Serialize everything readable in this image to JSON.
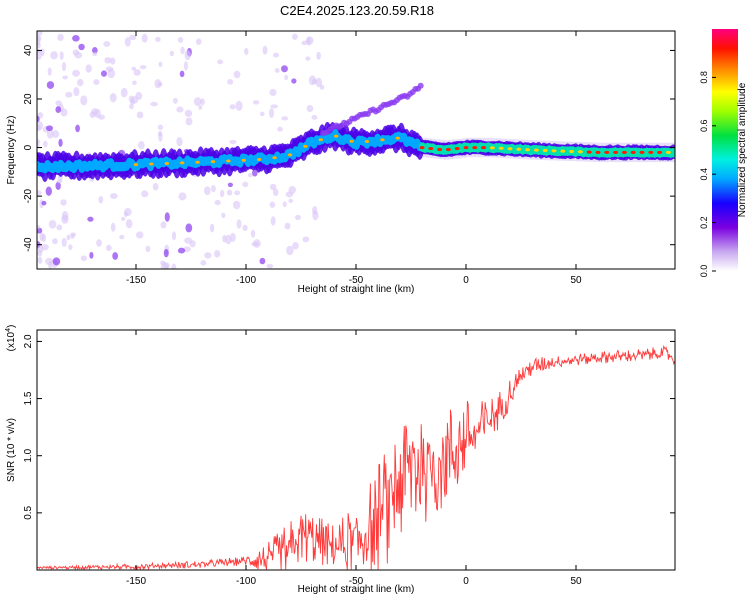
{
  "figure": {
    "title": "C2E4.2025.123.20.59.R18"
  },
  "chart_data": [
    {
      "type": "heatmap",
      "xlabel": "Height of straight line (km)",
      "ylabel": "Frequency (Hz)",
      "xlim": [
        -195,
        95
      ],
      "ylim": [
        -50,
        48
      ],
      "xticks": [
        -150,
        -100,
        -50,
        0,
        50
      ],
      "yticks": [
        -40,
        -20,
        0,
        20,
        40
      ],
      "colorbar": {
        "label": "Normalized spectral amplitude",
        "range": [
          0,
          1
        ],
        "ticks": [
          "0.0",
          "0.2",
          "0.4",
          "0.6",
          "0.8"
        ]
      },
      "ridge": {
        "description_points_km_hz": [
          [
            -195,
            -8
          ],
          [
            -150,
            -7
          ],
          [
            -120,
            -6
          ],
          [
            -95,
            -5
          ],
          [
            -85,
            -4
          ],
          [
            -80,
            -3
          ],
          [
            -70,
            2
          ],
          [
            -60,
            5
          ],
          [
            -50,
            2
          ],
          [
            -40,
            3
          ],
          [
            -30,
            4
          ],
          [
            -25,
            2
          ],
          [
            -20,
            0
          ],
          [
            -10,
            -1
          ],
          [
            0,
            0
          ],
          [
            10,
            0
          ],
          [
            30,
            -1
          ],
          [
            60,
            -2
          ],
          [
            95,
            -2
          ]
        ],
        "upper_branch_points_km_hz": [
          [
            -65,
            6
          ],
          [
            -55,
            10
          ],
          [
            -45,
            14
          ],
          [
            -35,
            18
          ],
          [
            -25,
            22
          ],
          [
            -20,
            26
          ]
        ]
      }
    },
    {
      "type": "line",
      "xlabel": "Height of straight line (km)",
      "ylabel": "SNR (10 * v/v)",
      "yscale_label": "(x10",
      "yscale_exp": "4",
      "xlim": [
        -195,
        95
      ],
      "ylim": [
        0,
        2.1
      ],
      "xticks": [
        -150,
        -100,
        -50,
        0,
        50
      ],
      "yticks": [
        0.5,
        1.0,
        1.5,
        2.0
      ],
      "color": "#ff3b3b",
      "trend_points": [
        [
          -195,
          0.02
        ],
        [
          -150,
          0.03
        ],
        [
          -120,
          0.05
        ],
        [
          -100,
          0.08
        ],
        [
          -90,
          0.1
        ],
        [
          -80,
          0.18
        ],
        [
          -75,
          0.3
        ],
        [
          -70,
          0.28
        ],
        [
          -60,
          0.2
        ],
        [
          -50,
          0.25
        ],
        [
          -45,
          0.35
        ],
        [
          -40,
          0.45
        ],
        [
          -35,
          0.6
        ],
        [
          -30,
          0.8
        ],
        [
          -25,
          0.9
        ],
        [
          -20,
          0.95
        ],
        [
          -15,
          0.9
        ],
        [
          -10,
          1.0
        ],
        [
          -5,
          1.05
        ],
        [
          0,
          1.15
        ],
        [
          5,
          1.2
        ],
        [
          10,
          1.3
        ],
        [
          15,
          1.4
        ],
        [
          20,
          1.55
        ],
        [
          25,
          1.7
        ],
        [
          30,
          1.78
        ],
        [
          40,
          1.82
        ],
        [
          50,
          1.84
        ],
        [
          60,
          1.86
        ],
        [
          70,
          1.87
        ],
        [
          80,
          1.88
        ],
        [
          90,
          1.9
        ],
        [
          95,
          1.85
        ]
      ],
      "noise_amplitude": [
        [
          -195,
          0.01
        ],
        [
          -100,
          0.04
        ],
        [
          -80,
          0.25
        ],
        [
          -60,
          0.2
        ],
        [
          -40,
          0.5
        ],
        [
          -25,
          0.6
        ],
        [
          -15,
          0.5
        ],
        [
          0,
          0.35
        ],
        [
          10,
          0.2
        ],
        [
          25,
          0.1
        ],
        [
          40,
          0.05
        ],
        [
          95,
          0.06
        ]
      ]
    }
  ]
}
